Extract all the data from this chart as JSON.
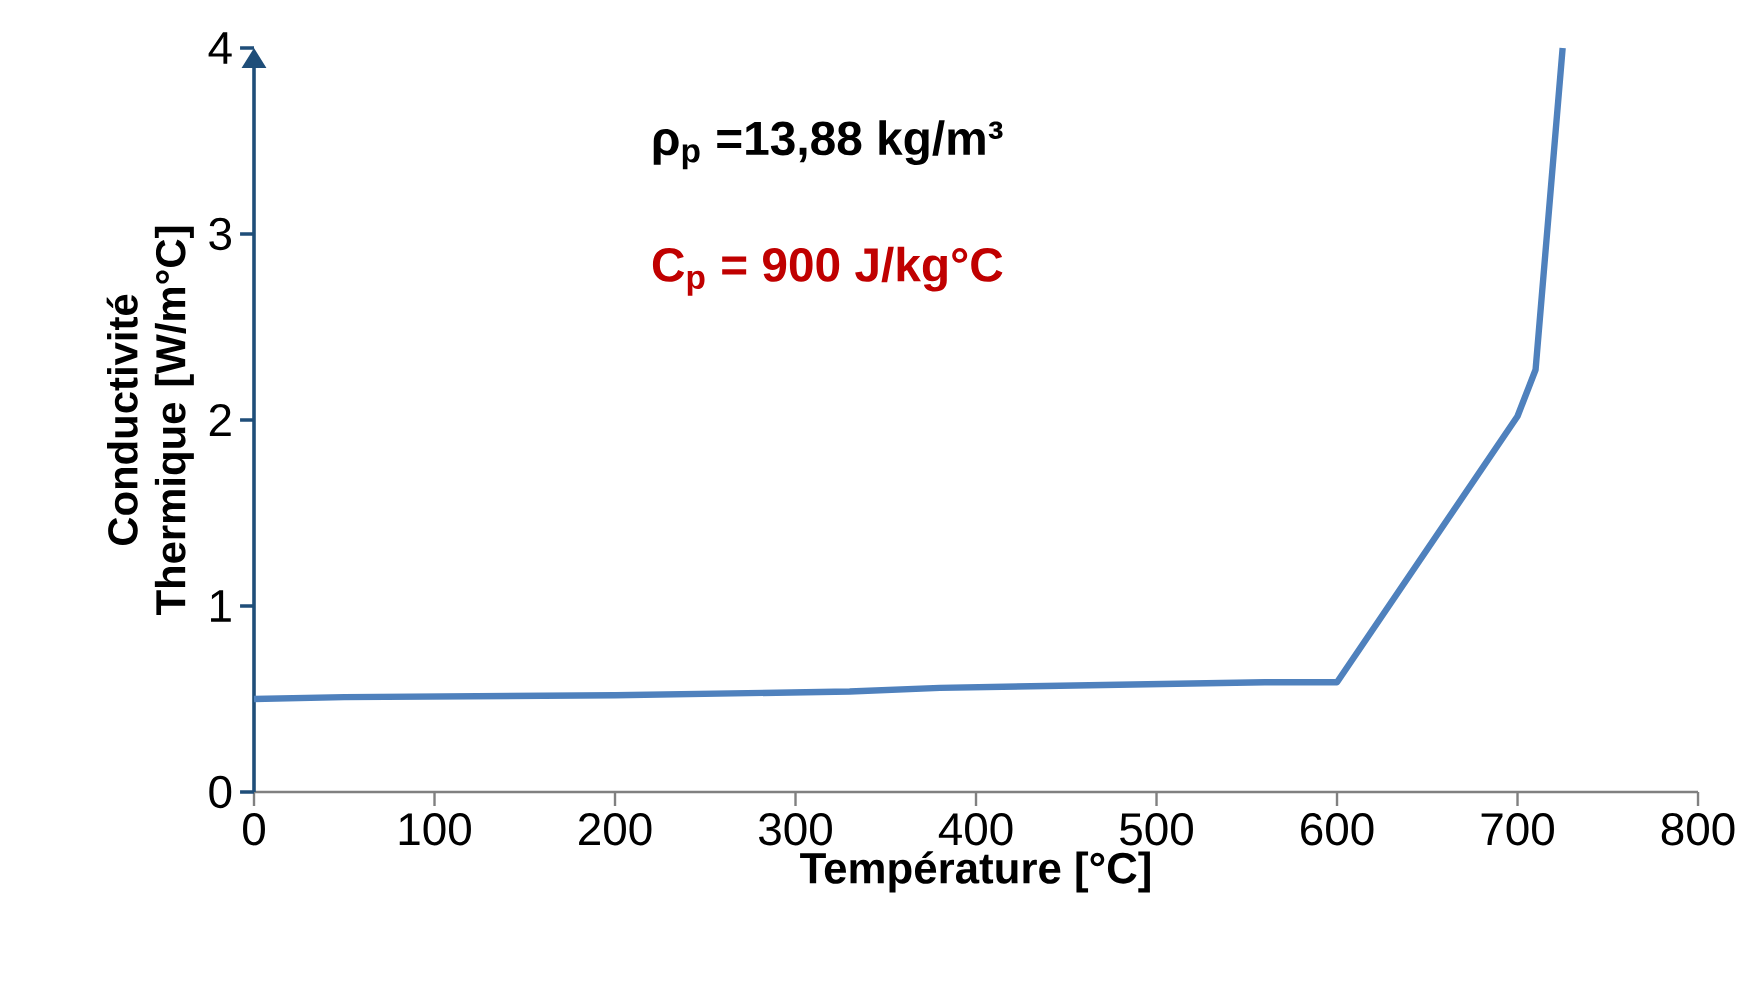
{
  "chart_data": {
    "type": "line",
    "xlabel": "Température [°C]",
    "ylabel": "Conductivité Thermique [W/m°C]",
    "x": [
      0,
      50,
      200,
      330,
      380,
      560,
      600,
      700,
      710,
      725
    ],
    "series": [
      {
        "color": "#4f81bd",
        "values": [
          0.5,
          0.51,
          0.52,
          0.54,
          0.56,
          0.59,
          0.59,
          2.02,
          2.27,
          4.0
        ]
      }
    ],
    "xlim": [
      0,
      800
    ],
    "ylim": [
      0,
      4
    ],
    "xticks": [
      0,
      100,
      200,
      300,
      400,
      500,
      600,
      700,
      800
    ],
    "yticks": [
      0,
      1,
      2,
      3,
      4
    ],
    "annotations": [
      "ρ$_{p}$ =13,88 kg/m³",
      "C$_{p}$ = 900 J/kg°C"
    ]
  }
}
